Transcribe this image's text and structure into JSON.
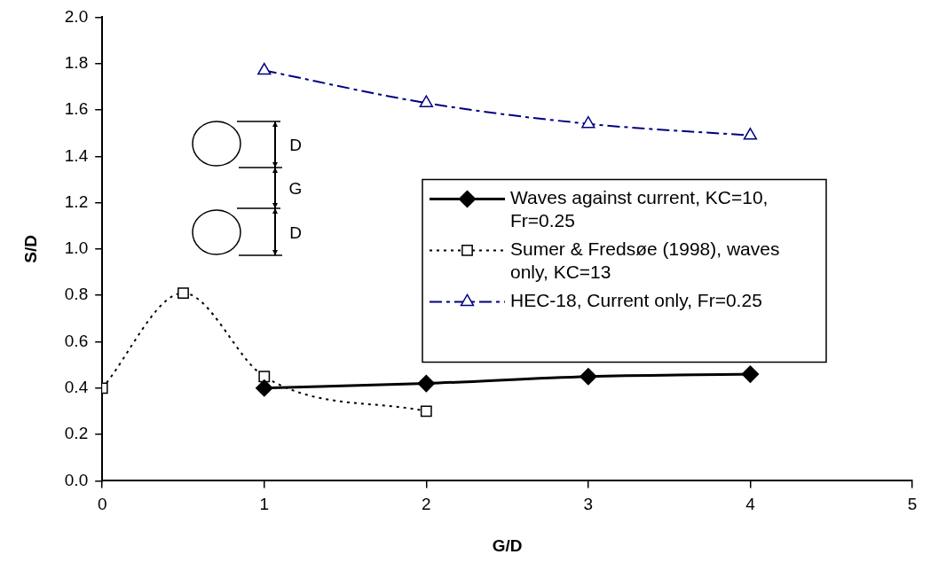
{
  "chart_data": {
    "type": "line",
    "xlabel": "G/D",
    "ylabel": "S/D",
    "xlim": [
      0,
      5
    ],
    "xticks": [
      0,
      1,
      2,
      3,
      4,
      5
    ],
    "ylim": [
      0,
      2
    ],
    "yticks": [
      {
        "value": 0,
        "label": "0.0"
      },
      0.2,
      0.4,
      0.6,
      0.8,
      {
        "value": 1,
        "label": "1.0"
      },
      1.2,
      1.4,
      1.6,
      1.8,
      {
        "value": 2,
        "label": "2.0"
      }
    ],
    "grid": false,
    "legend": "right",
    "annotations": [
      "D",
      "G",
      "D"
    ],
    "series": [
      {
        "name": "Waves against current, KC=10, Fr=0.25",
        "color": "#000000",
        "x": [
          1,
          2,
          3,
          4
        ],
        "values": [
          0.4,
          0.42,
          0.45,
          0.46
        ],
        "marker": "diamond",
        "line_style": "solid"
      },
      {
        "name": "Sumer & Fredsøe (1998), waves only, KC=13",
        "color": "#000000",
        "x": [
          0,
          0.5,
          1,
          2
        ],
        "values": [
          0.4,
          0.81,
          0.45,
          0.3
        ],
        "marker": "square",
        "line_style": "dotted"
      },
      {
        "name": "HEC-18, Current only, Fr=0.25",
        "color": "#000080",
        "x": [
          1,
          2,
          3,
          4
        ],
        "values": [
          1.77,
          1.63,
          1.54,
          1.49
        ],
        "marker": "triangle",
        "line_style": "dashed"
      }
    ]
  }
}
